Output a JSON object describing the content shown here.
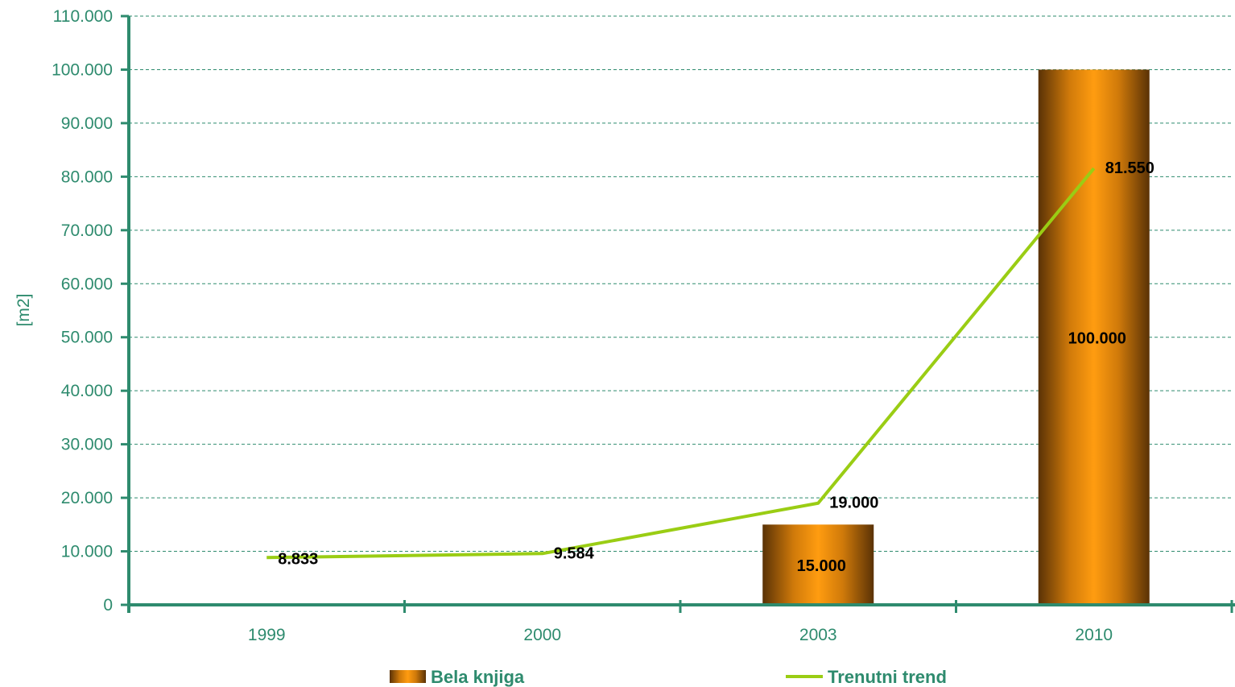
{
  "chart_data": {
    "type": "bar",
    "categories": [
      "1999",
      "2000",
      "2003",
      "2010"
    ],
    "ylabel": "[m2]",
    "ylim": [
      0,
      110000
    ],
    "yticks": [
      0,
      10000,
      20000,
      30000,
      40000,
      50000,
      60000,
      70000,
      80000,
      90000,
      100000,
      110000
    ],
    "ytick_labels": [
      "0",
      "10.000",
      "20.000",
      "30.000",
      "40.000",
      "50.000",
      "60.000",
      "70.000",
      "80.000",
      "90.000",
      "100.000",
      "110.000"
    ],
    "grid": true,
    "legend_position": "bottom",
    "series": [
      {
        "name": "Bela knjiga",
        "type": "bar",
        "color": "#f59a0f",
        "values": [
          null,
          null,
          15000,
          100000
        ],
        "labels": [
          "",
          "",
          "15.000",
          "100.000"
        ]
      },
      {
        "name": "Trenutni trend",
        "type": "line",
        "color": "#9acd14",
        "values": [
          8833,
          9584,
          19000,
          81550
        ],
        "labels": [
          "8.833",
          "9.584",
          "19.000",
          "81.550"
        ]
      }
    ],
    "axis_color": "#2e8b6e"
  }
}
